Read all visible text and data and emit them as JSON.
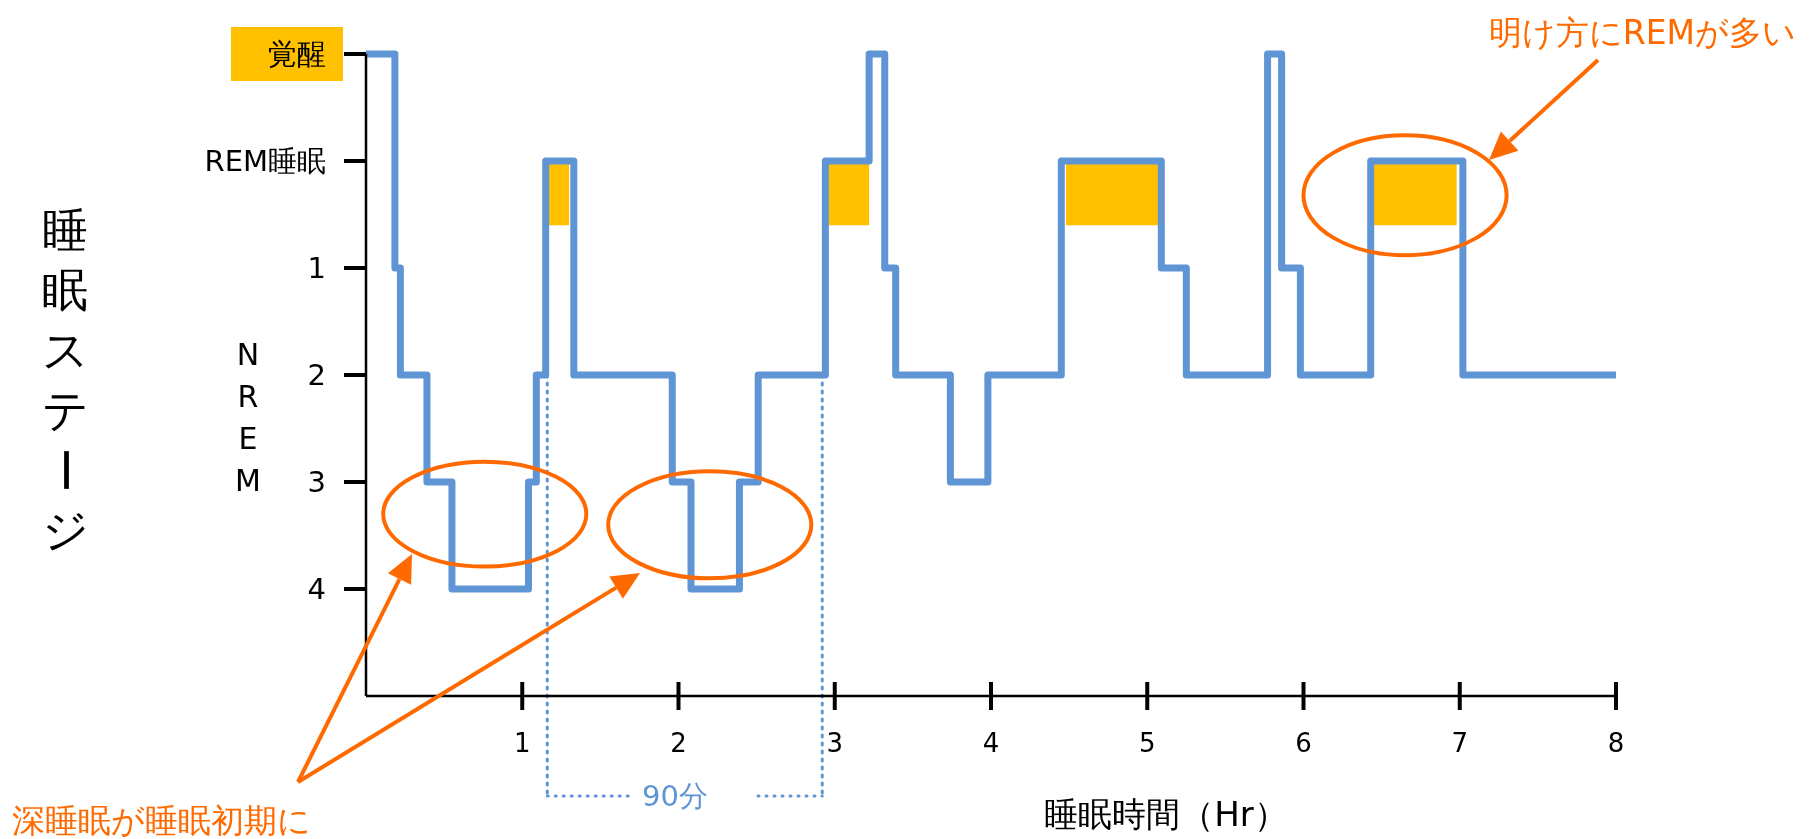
{
  "chart_data": {
    "type": "step",
    "xlabel": "睡眠時間（Hr）",
    "ylabel": "睡眠ステージ",
    "xlim": [
      0,
      8
    ],
    "xticks": [
      1,
      2,
      3,
      4,
      5,
      6,
      7,
      8
    ],
    "ylim": [
      5,
      -1
    ],
    "yticks": [
      {
        "value": -1,
        "label": "覚醒"
      },
      {
        "value": 0,
        "label": "REM睡眠"
      },
      1,
      2,
      3,
      4
    ],
    "grid": false,
    "marker": "none",
    "line_style": "solid",
    "series": [
      {
        "type": "step",
        "color": "#5f95d5",
        "x": [
          0,
          0.185,
          0.22,
          0.39,
          0.55,
          1.04,
          1.09,
          1.15,
          1.33,
          1.96,
          2.08,
          2.39,
          2.51,
          2.94,
          3.22,
          3.32,
          3.39,
          3.74,
          3.98,
          4.45,
          5.09,
          5.25,
          5.77,
          5.86,
          5.98,
          6.43,
          7.02,
          8
        ],
        "values": [
          -1,
          1,
          2,
          3,
          4,
          3,
          2,
          0,
          2,
          3,
          4,
          3,
          2,
          0,
          -1,
          1,
          2,
          3,
          2,
          0,
          1,
          2,
          -1,
          1,
          2,
          0,
          2,
          2
        ]
      },
      {
        "type": "area",
        "color": "#ffc000",
        "x": [
          1.17,
          1.3
        ],
        "values": [
          0.6,
          0.6
        ]
      },
      {
        "type": "area",
        "color": "#ffc000",
        "x": [
          2.96,
          3.22
        ],
        "values": [
          0.6,
          0.6
        ]
      },
      {
        "type": "area",
        "color": "#ffc000",
        "x": [
          4.48,
          5.09
        ],
        "values": [
          0.6,
          0.6
        ]
      },
      {
        "type": "area",
        "color": "#ffc000",
        "x": [
          6.45,
          6.98
        ],
        "values": [
          0.6,
          0.6
        ]
      }
    ],
    "ref_lines": [
      {
        "axis": "x",
        "value": 1.16,
        "color": "#5f95d5",
        "line_style": "dotted"
      },
      {
        "axis": "x",
        "value": 2.92,
        "color": "#5f95d5",
        "line_style": "dotted"
      }
    ],
    "annotations": [
      "明け方にREMが多い",
      "深睡眠が睡眠初期に",
      "90分",
      "NREM"
    ]
  }
}
